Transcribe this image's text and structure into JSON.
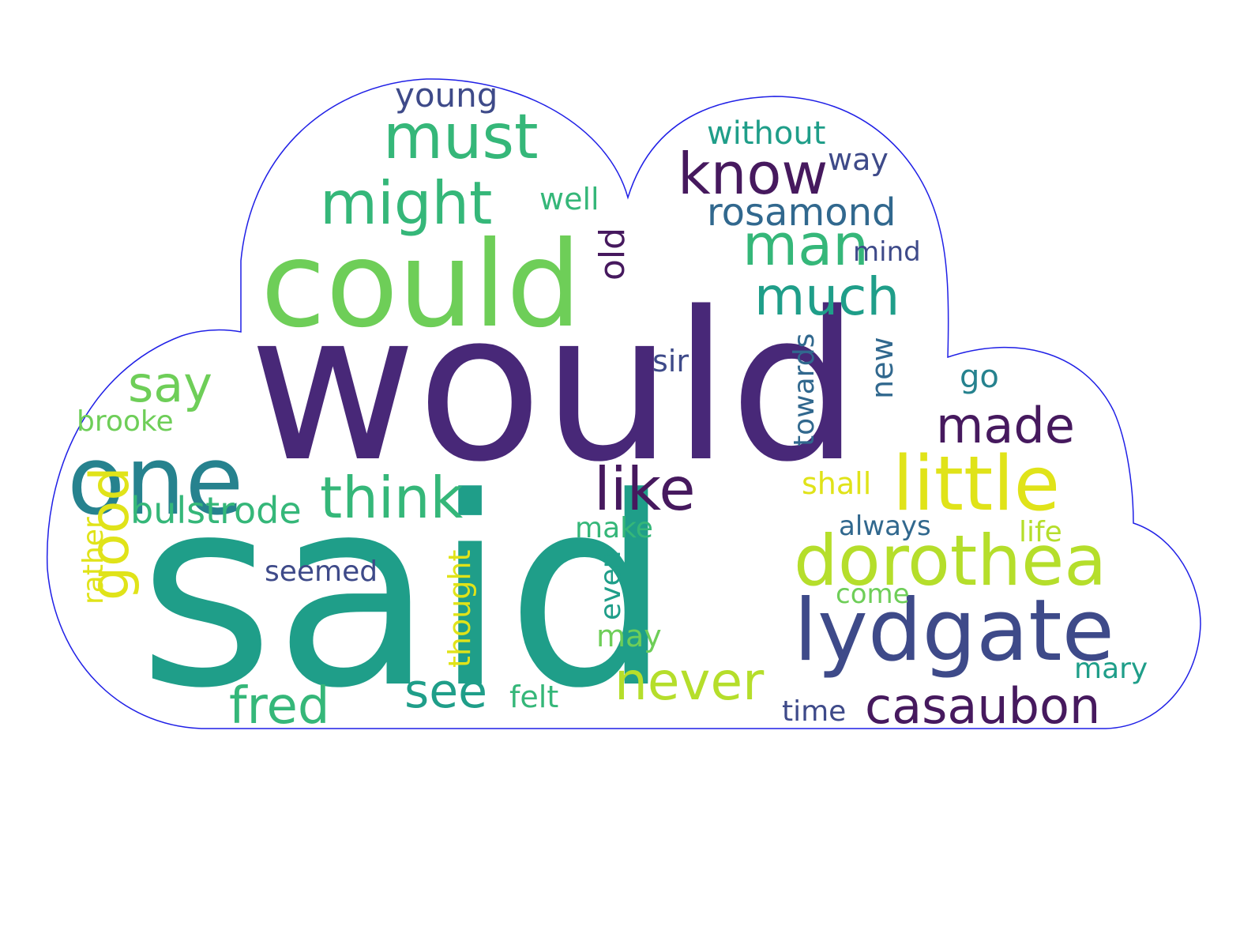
{
  "outline_color": "#1f1fe6",
  "palette": {
    "dark_purple": "#46195e",
    "purple": "#482878",
    "indigo": "#3e4a89",
    "blue": "#31688e",
    "teal_blue": "#26828e",
    "teal": "#1f9e89",
    "sea_green": "#35b779",
    "green": "#6ece58",
    "lime": "#b5de2b",
    "yellow": "#e0e319"
  },
  "words": [
    {
      "t": "said",
      "c": "teal"
    },
    {
      "t": "would",
      "c": "purple"
    },
    {
      "t": "could",
      "c": "green"
    },
    {
      "t": "lydgate",
      "c": "indigo"
    },
    {
      "t": "one",
      "c": "teal_blue"
    },
    {
      "t": "little",
      "c": "yellow"
    },
    {
      "t": "dorothea",
      "c": "lime"
    },
    {
      "t": "might",
      "c": "sea_green"
    },
    {
      "t": "must",
      "c": "sea_green"
    },
    {
      "t": "know",
      "c": "dark_purple"
    },
    {
      "t": "man",
      "c": "sea_green"
    },
    {
      "t": "like",
      "c": "dark_purple"
    },
    {
      "t": "think",
      "c": "sea_green"
    },
    {
      "t": "much",
      "c": "teal"
    },
    {
      "t": "never",
      "c": "lime"
    },
    {
      "t": "casaubon",
      "c": "dark_purple"
    },
    {
      "t": "fred",
      "c": "sea_green"
    },
    {
      "t": "see",
      "c": "teal"
    },
    {
      "t": "made",
      "c": "dark_purple"
    },
    {
      "t": "good",
      "c": "yellow"
    },
    {
      "t": "say",
      "c": "green"
    },
    {
      "t": "rosamond",
      "c": "blue"
    },
    {
      "t": "bulstrode",
      "c": "sea_green"
    },
    {
      "t": "old",
      "c": "dark_purple"
    },
    {
      "t": "without",
      "c": "teal"
    },
    {
      "t": "young",
      "c": "indigo"
    },
    {
      "t": "brooke",
      "c": "green"
    },
    {
      "t": "seemed",
      "c": "indigo"
    },
    {
      "t": "thought",
      "c": "yellow"
    },
    {
      "t": "felt",
      "c": "sea_green"
    },
    {
      "t": "may",
      "c": "green"
    },
    {
      "t": "make",
      "c": "sea_green"
    },
    {
      "t": "even",
      "c": "teal"
    },
    {
      "t": "always",
      "c": "blue"
    },
    {
      "t": "come",
      "c": "green"
    },
    {
      "t": "life",
      "c": "lime"
    },
    {
      "t": "mary",
      "c": "teal"
    },
    {
      "t": "time",
      "c": "indigo"
    },
    {
      "t": "shall",
      "c": "yellow"
    },
    {
      "t": "towards",
      "c": "blue"
    },
    {
      "t": "new",
      "c": "blue"
    },
    {
      "t": "go",
      "c": "teal_blue"
    },
    {
      "t": "sir",
      "c": "indigo"
    },
    {
      "t": "way",
      "c": "indigo"
    },
    {
      "t": "well",
      "c": "sea_green"
    },
    {
      "t": "mind",
      "c": "indigo"
    },
    {
      "t": "rather",
      "c": "yellow"
    }
  ]
}
